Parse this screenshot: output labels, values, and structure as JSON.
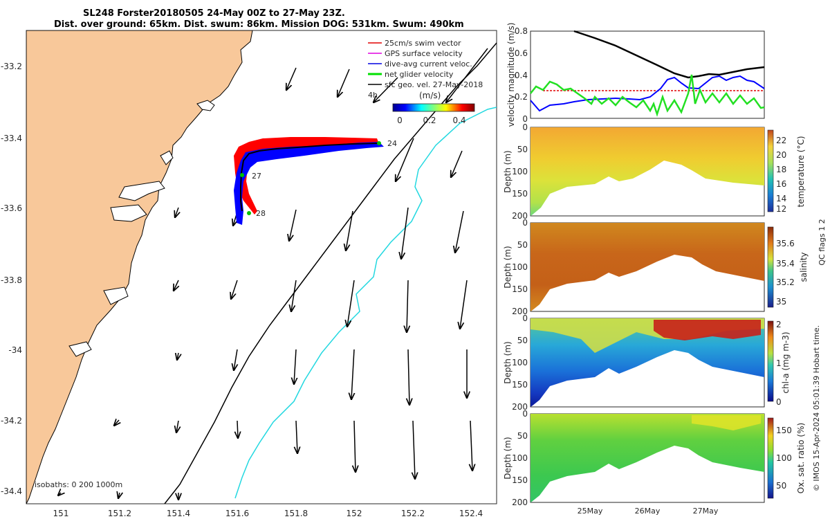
{
  "title": {
    "line1": "SL248 Forster20180505 24-May 00Z to 27-May 23Z.",
    "line2": "Dist. over ground: 65km. Dist. swum: 86km. Mission DOG: 531km. Swum: 490km"
  },
  "map": {
    "lon_ticks": [
      "151",
      "151.2",
      "151.4",
      "151.6",
      "151.8",
      "152",
      "152.2",
      "152.4"
    ],
    "lat_ticks": [
      "-33.2",
      "-33.4",
      "-33.6",
      "-33.8",
      "-34",
      "-34.2",
      "-34.4"
    ],
    "isobath_label": "isobaths: 0   200  1000m",
    "day_labels": [
      "24",
      "27",
      "28"
    ],
    "time_marker": "4h",
    "legend": {
      "items": [
        {
          "label": "25cm/s swim vector",
          "color": "#e00000"
        },
        {
          "label": "GPS surface velocity",
          "color": "#e000e0"
        },
        {
          "label": "dive-avg current veloc.",
          "color": "#0000e0"
        },
        {
          "label": "net glider velocity",
          "color": "#00e000"
        },
        {
          "label": "sfc geo. vel. 27-May-2018",
          "color": "#000000"
        }
      ],
      "colorbar_title": "(m/s)",
      "colorbar_ticks": [
        "0",
        "0.2",
        "0.4"
      ]
    },
    "colors": {
      "land": "#f8c89a",
      "isobath_200": "#000000",
      "isobath_1000": "#22d8e0",
      "track_swim": "#ff0000",
      "track_current": "#0000ff",
      "track_net": "#00c000"
    }
  },
  "panels": {
    "velocity": {
      "ylabel": "velocity magnitude (m/s)",
      "yticks": [
        "0",
        "0.2",
        "0.4",
        "0.6",
        "0.8"
      ],
      "ylim": [
        0,
        0.8
      ]
    },
    "temperature": {
      "ylabel": "Depth (m)",
      "cbar_label": "temperature (°C)",
      "yticks": [
        "0",
        "50",
        "100",
        "150",
        "200"
      ],
      "cbar_ticks": [
        "22",
        "20",
        "18",
        "16",
        "14",
        "12"
      ]
    },
    "salinity": {
      "ylabel": "Depth (m)",
      "cbar_label": "salinity",
      "yticks": [
        "0",
        "50",
        "100",
        "150",
        "200"
      ],
      "cbar_ticks": [
        "35.6",
        "35.4",
        "35.2",
        "35"
      ]
    },
    "chla": {
      "ylabel": "Depth (m)",
      "cbar_label": "chl-a (mg m-3)",
      "yticks": [
        "0",
        "50",
        "100",
        "150",
        "200"
      ],
      "cbar_ticks": [
        "2",
        "1",
        "0"
      ]
    },
    "oxygen": {
      "ylabel": "Depth (m)",
      "cbar_label": "Ox. sat. ratio (%)",
      "yticks": [
        "0",
        "50",
        "100",
        "150",
        "200"
      ],
      "cbar_ticks": [
        "150",
        "100",
        "50"
      ]
    },
    "x_ticks": [
      "25May",
      "26May",
      "27May"
    ]
  },
  "footer": {
    "side_note": "QC flags 1  2",
    "credit": "© IMOS 15-Apr-2024 05:01:39 Hobart time."
  }
}
